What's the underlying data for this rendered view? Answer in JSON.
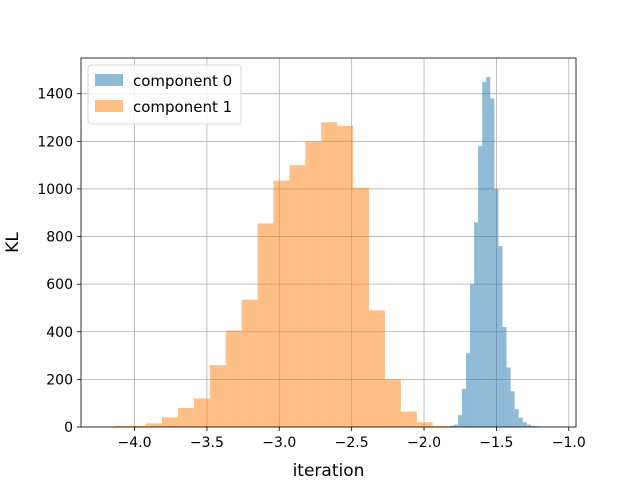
{
  "chart_data": {
    "type": "histogram",
    "title": "",
    "xlabel": "iteration",
    "ylabel": "KL",
    "xlim": [
      -4.37,
      -0.95
    ],
    "ylim": [
      0,
      1550
    ],
    "grid": true,
    "legend_position": "top-left",
    "xticks": [
      -4.0,
      -3.5,
      -3.0,
      -2.5,
      -2.0,
      -1.5,
      -1.0
    ],
    "xtick_labels": [
      "−4.0",
      "−3.5",
      "−3.0",
      "−2.5",
      "−2.0",
      "−1.5",
      "−1.0"
    ],
    "yticks": [
      0,
      200,
      400,
      600,
      800,
      1000,
      1200,
      1400
    ],
    "ytick_labels": [
      "0",
      "200",
      "400",
      "600",
      "800",
      "1000",
      "1200",
      "1400"
    ],
    "series": [
      {
        "name": "component 0",
        "color": "#1f77b4",
        "alpha": 0.5,
        "bin_edges": [
          -1.822,
          -1.794,
          -1.766,
          -1.738,
          -1.71,
          -1.682,
          -1.654,
          -1.626,
          -1.598,
          -1.57,
          -1.542,
          -1.514,
          -1.486,
          -1.458,
          -1.43,
          -1.402,
          -1.374,
          -1.346,
          -1.318,
          -1.29,
          -1.262,
          -1.234,
          -1.206,
          -1.178,
          -1.15,
          -1.122
        ],
        "counts": [
          5,
          10,
          50,
          160,
          310,
          600,
          860,
          1180,
          1450,
          1470,
          1380,
          1000,
          760,
          420,
          250,
          150,
          75,
          40,
          20,
          10,
          5,
          3,
          2,
          1,
          1
        ]
      },
      {
        "name": "component 1",
        "color": "#ff7f0e",
        "alpha": 0.5,
        "bin_edges": [
          -4.14,
          -4.03,
          -3.92,
          -3.81,
          -3.7,
          -3.59,
          -3.48,
          -3.37,
          -3.26,
          -3.15,
          -3.04,
          -2.93,
          -2.82,
          -2.71,
          -2.6,
          -2.49,
          -2.38,
          -2.27,
          -2.16,
          -2.05,
          -1.94,
          -1.83,
          -1.72
        ],
        "counts": [
          5,
          5,
          15,
          40,
          80,
          120,
          260,
          405,
          535,
          855,
          1035,
          1100,
          1200,
          1280,
          1265,
          1005,
          490,
          200,
          65,
          20,
          5,
          1
        ]
      }
    ]
  }
}
